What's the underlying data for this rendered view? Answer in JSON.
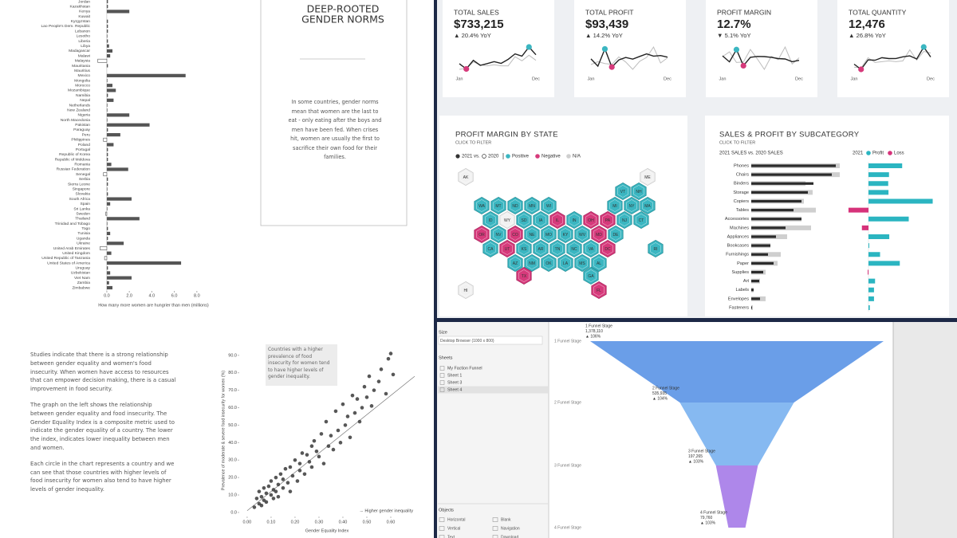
{
  "chart_data": [
    {
      "type": "bar",
      "x_label": "How many more women are hungrier than men (millions)",
      "categories": [
        "Jordan",
        "Kazakhstan",
        "Kenya",
        "Kuwait",
        "Kyrgyzstan",
        "Lao People's Dem. Republic",
        "Lebanon",
        "Lesotho",
        "Liberia",
        "Libya",
        "Madagascar",
        "Malawi",
        "Malaysia",
        "Mauritania",
        "Mauritius",
        "Mexico",
        "Mongolia",
        "Morocco",
        "Mozambique",
        "Namibia",
        "Nepal",
        "Netherlands",
        "New Zealand",
        "Nigeria",
        "North Macedonia",
        "Pakistan",
        "Paraguay",
        "Peru",
        "Philippines",
        "Poland",
        "Portugal",
        "Republic of Korea",
        "Republic of Moldova",
        "Romania",
        "Russian Federation",
        "Senegal",
        "Serbia",
        "Sierra Leone",
        "Singapore",
        "Slovakia",
        "South Africa",
        "Spain",
        "Sri Lanka",
        "Sweden",
        "Thailand",
        "Trinidad and Tobago",
        "Togo",
        "Tunisia",
        "Uganda",
        "Ukraine",
        "United Arab Emirates",
        "United Kingdom",
        "United Republic of Tanzania",
        "United States of America",
        "Uruguay",
        "Uzbekistan",
        "Viet Nam",
        "Zambia",
        "Zimbabwe"
      ],
      "values": [
        0.1,
        0.1,
        2.0,
        0.0,
        0.1,
        0.1,
        0.1,
        0.05,
        0.1,
        0.2,
        0.5,
        0.3,
        -0.8,
        0.1,
        0.0,
        7.0,
        0.05,
        0.5,
        0.8,
        0.1,
        0.6,
        0.05,
        0.05,
        2.0,
        0.05,
        3.8,
        0.1,
        1.2,
        -0.3,
        0.6,
        0.1,
        0.1,
        0.1,
        0.4,
        1.9,
        -0.3,
        0.1,
        0.1,
        0.05,
        0.1,
        2.2,
        0.3,
        0.05,
        -0.1,
        2.9,
        0.05,
        0.1,
        0.3,
        0.1,
        1.5,
        -0.6,
        0.4,
        -0.2,
        6.6,
        0.1,
        0.3,
        2.2,
        0.2,
        0.5
      ],
      "color": "#555555",
      "xlim": [
        -1.2,
        9.5
      ],
      "xticks": [
        {
          "value": 0,
          "label": "0.0"
        },
        {
          "value": 2,
          "label": "2.0"
        },
        {
          "value": 4,
          "label": "4.0"
        },
        {
          "value": 6,
          "label": "6.0"
        },
        {
          "value": 8,
          "label": "8.0"
        }
      ]
    },
    {
      "type": "scatter",
      "x_label": "Gender Equality Index",
      "y_label": "Prevalence of moderate & severe food insecurity for women (%)",
      "annotation": "Countries with a higher prevalence of food insecurity for women tend to have higher levels of gender inequality.",
      "direction_note": "→ Higher gender inequality",
      "color": "#3a3a3a",
      "x": [
        0.03,
        0.04,
        0.05,
        0.05,
        0.06,
        0.06,
        0.07,
        0.07,
        0.08,
        0.08,
        0.09,
        0.1,
        0.1,
        0.11,
        0.11,
        0.12,
        0.12,
        0.13,
        0.13,
        0.14,
        0.15,
        0.15,
        0.16,
        0.17,
        0.18,
        0.18,
        0.19,
        0.2,
        0.21,
        0.22,
        0.22,
        0.23,
        0.24,
        0.25,
        0.26,
        0.27,
        0.27,
        0.28,
        0.29,
        0.3,
        0.31,
        0.32,
        0.33,
        0.34,
        0.35,
        0.36,
        0.37,
        0.38,
        0.39,
        0.4,
        0.41,
        0.42,
        0.43,
        0.44,
        0.45,
        0.46,
        0.47,
        0.48,
        0.49,
        0.5,
        0.51,
        0.52,
        0.53,
        0.55,
        0.56,
        0.58,
        0.59,
        0.6,
        0.61
      ],
      "y": [
        3,
        8,
        5,
        12,
        4,
        9,
        14,
        7,
        11,
        6,
        15,
        10,
        18,
        8,
        13,
        20,
        12,
        16,
        9,
        22,
        14,
        19,
        25,
        17,
        26,
        12,
        21,
        30,
        18,
        28,
        24,
        34,
        22,
        33,
        29,
        38,
        26,
        41,
        35,
        32,
        45,
        28,
        52,
        38,
        44,
        36,
        58,
        47,
        40,
        62,
        50,
        55,
        43,
        67,
        57,
        65,
        52,
        60,
        72,
        66,
        78,
        61,
        70,
        75,
        82,
        68,
        88,
        91,
        79
      ],
      "trendline": {
        "x": [
          0.0,
          0.7
        ],
        "y": [
          1,
          78
        ]
      },
      "xlim": [
        -0.033,
        0.7
      ],
      "ylim": [
        -2.3,
        96.3
      ],
      "xticks": [
        {
          "value": 0,
          "label": "0.00"
        },
        {
          "value": 0.1,
          "label": "0.10"
        },
        {
          "value": 0.2,
          "label": "0.20"
        },
        {
          "value": 0.3,
          "label": "0.30"
        },
        {
          "value": 0.4,
          "label": "0.40"
        },
        {
          "value": 0.5,
          "label": "0.50"
        },
        {
          "value": 0.6,
          "label": "0.60"
        }
      ],
      "yticks": [
        {
          "value": 0,
          "label": "0.0"
        },
        {
          "value": 10,
          "label": "10.0"
        },
        {
          "value": 20,
          "label": "20.0"
        },
        {
          "value": 30,
          "label": "30.0"
        },
        {
          "value": 40,
          "label": "40.0"
        },
        {
          "value": 50,
          "label": "50.0"
        },
        {
          "value": 60,
          "label": "60.0"
        },
        {
          "value": 70,
          "label": "70.0"
        },
        {
          "value": 80,
          "label": "80.0"
        },
        {
          "value": 90,
          "label": "90.0"
        }
      ]
    },
    {
      "type": "hexmap",
      "title": "PROFIT MARGIN BY STATE",
      "subtitle": "CLICK TO FILTER",
      "legend": {
        "current": "2021 vs.",
        "previous": "2020",
        "positive": "Positive",
        "negative": "Negative",
        "na": "N/A"
      },
      "status_colors": {
        "positive": "#3bb6c1",
        "negative": "#d63a7b",
        "na": "#f1f1f1"
      },
      "categories": [
        "AK",
        "ME",
        "HI",
        "VT",
        "NH",
        "WA",
        "MT",
        "ND",
        "MN",
        "WI",
        "MI",
        "NY",
        "MA",
        "ID",
        "WY",
        "SD",
        "IA",
        "IL",
        "IN",
        "OH",
        "PA",
        "NJ",
        "CT",
        "OR",
        "NV",
        "CO",
        "NE",
        "MO",
        "KY",
        "WV",
        "MD",
        "DE",
        "CA",
        "UT",
        "KS",
        "AR",
        "TN",
        "NC",
        "VA",
        "DC",
        "RI",
        "AZ",
        "NM",
        "OK",
        "LA",
        "MS",
        "AL",
        "TX",
        "GA",
        "FL"
      ],
      "status": [
        "na",
        "na",
        "na",
        "positive",
        "positive",
        "positive",
        "positive",
        "positive",
        "positive",
        "positive",
        "positive",
        "positive",
        "positive",
        "positive",
        "na",
        "positive",
        "positive",
        "negative",
        "positive",
        "negative",
        "negative",
        "positive",
        "positive",
        "negative",
        "positive",
        "negative",
        "positive",
        "positive",
        "positive",
        "positive",
        "negative",
        "positive",
        "positive",
        "negative",
        "positive",
        "positive",
        "positive",
        "positive",
        "positive",
        "negative",
        "positive",
        "positive",
        "positive",
        "positive",
        "positive",
        "positive",
        "positive",
        "negative",
        "positive",
        "negative"
      ]
    },
    {
      "type": "bullet",
      "title": "SALES & PROFIT BY SUBCATEGORY",
      "subtitle": "CLICK TO FILTER",
      "sales_header": "2021 SALES vs. 2020 SALES",
      "profit_header": "2021",
      "categories": [
        "Phones",
        "Chairs",
        "Binders",
        "Storage",
        "Copiers",
        "Tables",
        "Accessories",
        "Machines",
        "Appliances",
        "Bookcases",
        "Furnishings",
        "Paper",
        "Supplies",
        "Art",
        "Labels",
        "Envelopes",
        "Fasteners"
      ],
      "sales": {
        "color": "#2b2b2b",
        "values": [
          106,
          101,
          78,
          71,
          63,
          53,
          63,
          43,
          31,
          24,
          21,
          28,
          15,
          10,
          3,
          11,
          1
        ]
      },
      "sales_prior": {
        "color": "#cfcfcf",
        "values": [
          111,
          111,
          68,
          77,
          66,
          81,
          63,
          75,
          45,
          24,
          37,
          33,
          18,
          11,
          3,
          18,
          2
        ]
      },
      "profit": {
        "name": "Profit",
        "color": "#2bb5c1",
        "values": [
          12.8,
          7.8,
          7.5,
          7.6,
          24.4,
          -7.6,
          15.3,
          -2.5,
          7.9,
          0.3,
          4.4,
          11.9,
          -0.3,
          2.5,
          2.1,
          2.1,
          0.5
        ]
      },
      "loss": {
        "name": "Loss",
        "color": "#d6327a"
      }
    },
    {
      "type": "funnel",
      "categories": [
        "1 Funnel Stage",
        "2 Funnel Stage",
        "3 Funnel Stage",
        "4 Funnel Stage"
      ],
      "values": [
        1378110,
        535935,
        197265,
        79760
      ],
      "value_labels": [
        "1,378,110",
        "535,935",
        "197,265",
        "79,760"
      ],
      "changes": [
        "▲ 106%",
        "▲ 104%",
        "▲ 103%",
        "▲ 103%"
      ],
      "segment_colors": [
        "#5d96e6",
        "#7cb3f0",
        "#a77de8"
      ]
    }
  ],
  "kpis": [
    {
      "title": "TOTAL SALES",
      "value": "$733,215",
      "change": "▲ 20.4% YoY",
      "sparkline": {
        "type": "line",
        "categories": [
          "Jan",
          null,
          null,
          null,
          null,
          null,
          null,
          null,
          null,
          null,
          null,
          "Dec"
        ],
        "max_color": "#3bb6c1",
        "min_color": "#d63a7b",
        "series": [
          {
            "name": "2021",
            "color": "#222222",
            "values": [
              43971,
              20301,
              58872,
              36522,
              44261,
              52982,
              45264,
              63121,
              87867,
              77777,
              118448,
              83829
            ]
          },
          {
            "name": "2020",
            "color": "#bdbdbd",
            "values": [
              18542,
              22979,
              51716,
              38750,
              34406,
              39261,
              34195,
              33810,
              74980,
              56880,
              81700,
              59000
            ]
          }
        ]
      }
    },
    {
      "title": "TOTAL PROFIT",
      "value": "$93,439",
      "change": "▲ 14.2% YoY",
      "sparkline": {
        "type": "line",
        "categories": [
          "Jan",
          null,
          null,
          null,
          null,
          null,
          null,
          null,
          null,
          null,
          null,
          "Dec"
        ],
        "max_color": "#3bb6c1",
        "min_color": "#d63a7b",
        "series": [
          {
            "name": "2021",
            "color": "#222222",
            "values": [
              7140,
              1613,
              14752,
              933,
              6343,
              8224,
              6952,
              9041,
              10992,
              9275,
              9690,
              8483
            ]
          },
          {
            "name": "2020",
            "color": "#bdbdbd",
            "values": [
              2824,
              5004,
              3612,
              2978,
              8663,
              4751,
              -841,
              5318,
              8329,
              16243,
              4011,
              8016
            ]
          }
        ]
      }
    },
    {
      "title": "PROFIT MARGIN",
      "value": "12.7%",
      "change": "▼ 5.1% YoY",
      "sparkline": {
        "type": "line",
        "categories": [
          "Jan",
          null,
          null,
          null,
          null,
          null,
          null,
          null,
          null,
          null,
          null,
          "Dec"
        ],
        "max_color": "#3bb6c1",
        "min_color": "#d63a7b",
        "series": [
          {
            "name": "2021",
            "color": "#222222",
            "values": [
              16.3,
              7.9,
              25.0,
              2.6,
              14.3,
              15.5,
              15.3,
              14.3,
              12.5,
              11.9,
              8.2,
              10.1
            ]
          },
          {
            "name": "2020",
            "color": "#bdbdbd",
            "values": [
              15.3,
              21.8,
              7.0,
              7.7,
              25.2,
              12.1,
              -2.5,
              15.7,
              11.1,
              28.6,
              4.9,
              13.6
            ]
          }
        ]
      }
    },
    {
      "title": "TOTAL QUANTITY",
      "value": "12,476",
      "change": "▲ 26.8% YoY",
      "sparkline": {
        "type": "line",
        "categories": [
          "Jan",
          null,
          null,
          null,
          null,
          null,
          null,
          null,
          null,
          null,
          null,
          "Dec"
        ],
        "max_color": "#3bb6c1",
        "min_color": "#d63a7b",
        "series": [
          {
            "name": "2021",
            "color": "#222222",
            "values": [
              690,
              363,
              966,
              942,
              1101,
              1046,
              1050,
              1156,
              1217,
              1020,
              1780,
              1145
            ]
          },
          {
            "name": "2020",
            "color": "#bdbdbd",
            "values": [
              500,
              460,
              1100,
              800,
              850,
              900,
              850,
              900,
              1600,
              950,
              1500,
              1400
            ]
          }
        ]
      }
    }
  ],
  "gender_norms_panel": {
    "title_lines": [
      "DEEP-ROOTED",
      "GENDER NORMS"
    ],
    "text": "In some countries, gender norms mean that women are the last to eat - only eating after the boys and men have been fed. When crises hit, women are usually the first to sacrifice their own food for their families."
  },
  "story": {
    "paragraphs": [
      "Studies indicate that there is a strong relationship between gender equality and women's food insecurity. When women have access to resources that can empower decision making, there is a casual improvement in food security.",
      "The graph on the left shows the relationship between gender equality and food insecurity. The Gender Equality Index is a composite metric used to indicate the gender equality of a country. The lower the index, indicates lower inequality between men and women.",
      "Each circle in the chart represents a country and we can see that those countries with higher levels of food insecurity for women also tend to have higher levels of gender inequality."
    ]
  },
  "tableau_pane": {
    "size_label": "Size",
    "size_value": "Desktop Browser (1000 x 800)",
    "sheets_label": "Sheets",
    "sheets": [
      "My Faction Funnel",
      "Sheet 1",
      "Sheet 3",
      "Sheet 4"
    ],
    "objects_label": "Objects",
    "objects": [
      "Horizontal",
      "Blank",
      "Vertical",
      "Navigation",
      "Text",
      "Download"
    ]
  }
}
